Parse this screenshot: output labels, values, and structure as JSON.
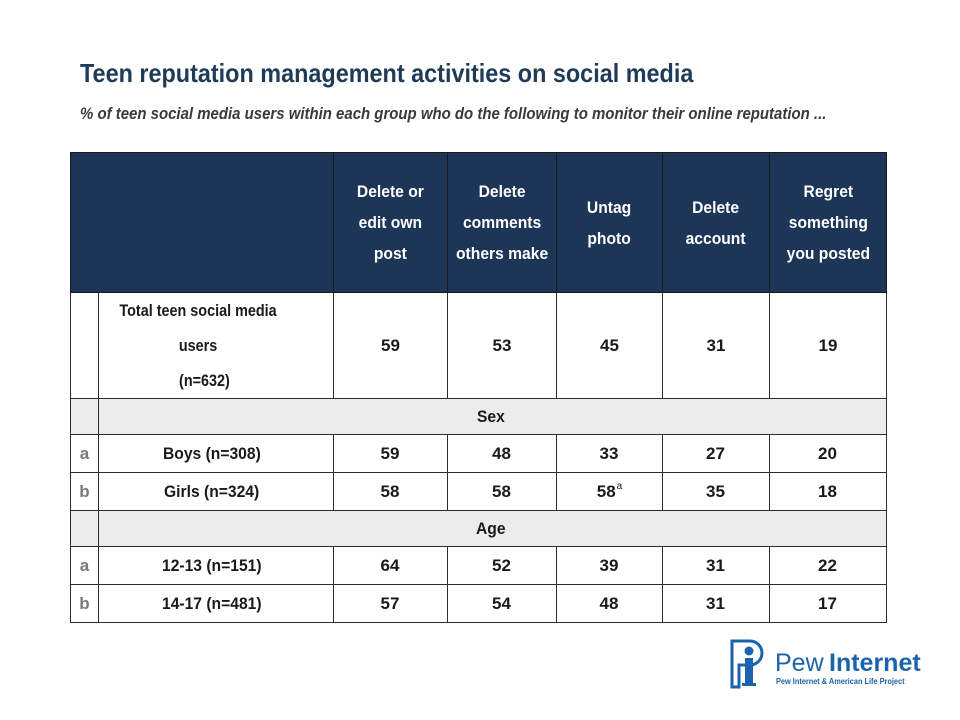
{
  "title": "Teen reputation management activities on social media",
  "subtitle": "% of teen social media users within each group who do the following to monitor their online reputation ...",
  "table": {
    "headers": [
      [
        "Delete or",
        "edit own",
        "post"
      ],
      [
        "Delete",
        "comments",
        "others make"
      ],
      [
        "Untag",
        "photo"
      ],
      [
        "Delete",
        "account"
      ],
      [
        "Regret",
        "something",
        "you posted"
      ]
    ],
    "total": {
      "label_line1": "Total teen social media users",
      "label_line2": "(n=632)",
      "values": [
        "59",
        "53",
        "45",
        "31",
        "19"
      ]
    },
    "sections": [
      {
        "title": "Sex",
        "rows": [
          {
            "letter": "a",
            "label": "Boys (n=308)",
            "values": [
              "59",
              "48",
              "33",
              "27",
              "20"
            ],
            "notes": [
              "",
              "",
              "",
              "",
              ""
            ]
          },
          {
            "letter": "b",
            "label": "Girls (n=324)",
            "values": [
              "58",
              "58",
              "58",
              "35",
              "18"
            ],
            "notes": [
              "",
              "",
              "a",
              "",
              ""
            ]
          }
        ]
      },
      {
        "title": "Age",
        "rows": [
          {
            "letter": "a",
            "label": "12-13 (n=151)",
            "values": [
              "64",
              "52",
              "39",
              "31",
              "22"
            ],
            "notes": [
              "",
              "",
              "",
              "",
              ""
            ]
          },
          {
            "letter": "b",
            "label": "14-17 (n=481)",
            "values": [
              "57",
              "54",
              "48",
              "31",
              "17"
            ],
            "notes": [
              "",
              "",
              "",
              "",
              ""
            ]
          }
        ]
      }
    ]
  },
  "logo": {
    "word1": "Pew",
    "word2": "Internet",
    "tagline": "Pew Internet & American Life Project"
  },
  "colors": {
    "header_bg": "#1d3557",
    "section_bg": "#ececec",
    "title": "#1f3b57",
    "logo": "#1b64ad"
  }
}
